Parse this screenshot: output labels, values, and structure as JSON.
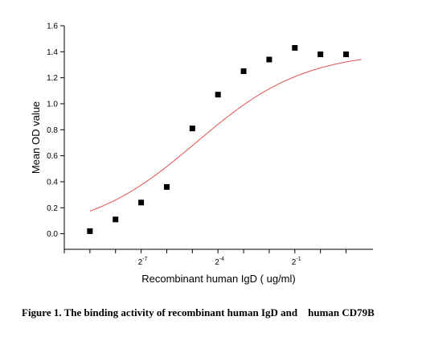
{
  "caption": "Figure 1. The binding activity of recombinant human IgD and    human CD79B",
  "chart_data": {
    "type": "scatter",
    "title": "",
    "xlabel": "Recombinant human IgD ( ug/ml)",
    "ylabel": "Mean OD value",
    "x_scale": "log2",
    "xlim_log2": [
      -10,
      2.05
    ],
    "ylim": [
      -0.12,
      1.6
    ],
    "x_tick_exponents": [
      -10,
      -9,
      -8,
      -7,
      -6,
      -5,
      -4,
      -3,
      -2,
      -1,
      0,
      1
    ],
    "x_tick_labels": [
      {
        "exponent": -7,
        "base": "2",
        "sup": "-7"
      },
      {
        "exponent": -4,
        "base": "2",
        "sup": "-4"
      },
      {
        "exponent": -1,
        "base": "2",
        "sup": "-1"
      }
    ],
    "y_ticks": [
      0.0,
      0.2,
      0.4,
      0.6,
      0.8,
      1.0,
      1.2,
      1.4,
      1.6
    ],
    "y_tick_labels": [
      "0.0",
      "0.2",
      "0.4",
      "0.6",
      "0.8",
      "1.0",
      "1.2",
      "1.4",
      "1.6"
    ],
    "grid": false,
    "series": [
      {
        "marker": "square",
        "color": "#000000",
        "x_log2": [
          -9,
          -8,
          -7,
          -6,
          -5,
          -4,
          -3,
          -2,
          -1,
          0,
          1
        ],
        "y": [
          0.02,
          0.11,
          0.24,
          0.36,
          0.81,
          1.07,
          1.25,
          1.34,
          1.43,
          1.38,
          1.38
        ]
      }
    ],
    "fit_curve": {
      "model": "4PL",
      "color": "#e05050",
      "bottom": 0.0,
      "top": 1.405,
      "log2_ec50": -4.85,
      "hill": 0.68,
      "x_log2_range": [
        -9,
        1.6
      ]
    }
  }
}
